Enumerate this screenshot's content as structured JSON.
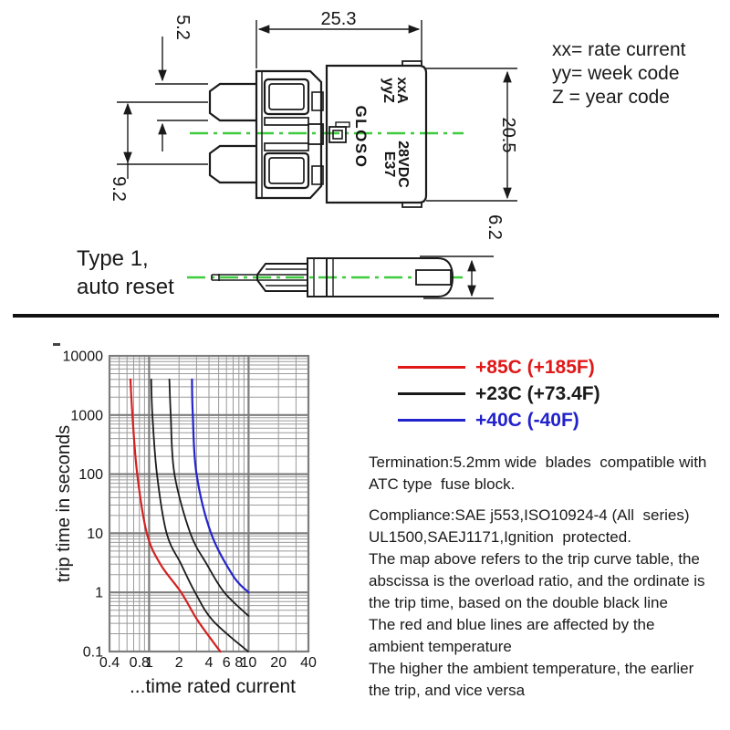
{
  "drawing": {
    "dims": {
      "overall_width": "25.3",
      "blade_width": "5.2",
      "blade_pitch": "9.2",
      "overall_height": "20.5",
      "side_height": "6.2"
    },
    "marking": {
      "current_code": "xxA",
      "week_code": "yyZ",
      "brand": "GLOSO",
      "voltage": "28VDC",
      "series": "E37"
    },
    "type_label": {
      "line1": "Type 1,",
      "line2": "auto reset"
    },
    "code_legend": {
      "line1": "xx= rate current",
      "line2": "yy= week code",
      "line3": "Z = year code"
    }
  },
  "chart": {
    "legend": [
      {
        "label": "+85C (+185F)",
        "color": "#e01818"
      },
      {
        "label": "+23C (+73.4F)",
        "color": "#1a1a1a"
      },
      {
        "label": "+40C (-40F)",
        "color": "#2222cc"
      }
    ],
    "xlabel": "...time rated current",
    "ylabel": "trip time in seconds"
  },
  "chart_data": {
    "type": "line",
    "x_scale": "log",
    "y_scale": "log",
    "xlim": [
      0.4,
      40
    ],
    "ylim": [
      0.1,
      10000
    ],
    "xlabel": "...time rated current",
    "ylabel": "trip time in seconds",
    "x_ticks": [
      0.4,
      0.8,
      1,
      2,
      4,
      6,
      8,
      10,
      20,
      40
    ],
    "x_tick_labels": [
      "0.4",
      "0.8",
      "1",
      "2",
      "4",
      "6",
      "8",
      "10",
      "20",
      "40"
    ],
    "y_ticks": [
      0.1,
      1,
      10,
      100,
      1000,
      10000
    ],
    "y_tick_labels": [
      "0.1",
      "1",
      "10",
      "100",
      "1000",
      "10000"
    ],
    "grid": true,
    "legend_position": "top-right",
    "series": [
      {
        "name": "+85C (+185F)",
        "color": "#d42020",
        "width": 2.2,
        "points": [
          [
            0.65,
            4000
          ],
          [
            0.68,
            1000
          ],
          [
            0.76,
            100
          ],
          [
            0.95,
            10
          ],
          [
            1.3,
            3
          ],
          [
            2.1,
            1
          ],
          [
            3.1,
            0.33
          ],
          [
            5.2,
            0.1
          ]
        ]
      },
      {
        "name": "+23C (+73.4F) lower",
        "color": "#1c1c1c",
        "width": 1.8,
        "points": [
          [
            1.05,
            4000
          ],
          [
            1.08,
            1000
          ],
          [
            1.2,
            100
          ],
          [
            1.5,
            10
          ],
          [
            2.1,
            3
          ],
          [
            2.9,
            1
          ],
          [
            4.4,
            0.33
          ],
          [
            9.9,
            0.1
          ]
        ]
      },
      {
        "name": "+23C (+73.4F) upper",
        "color": "#1c1c1c",
        "width": 1.8,
        "points": [
          [
            1.6,
            4000
          ],
          [
            1.65,
            1000
          ],
          [
            1.8,
            100
          ],
          [
            2.6,
            10
          ],
          [
            3.8,
            3
          ],
          [
            5.7,
            1
          ],
          [
            10,
            0.4
          ]
        ]
      },
      {
        "name": "+40C (-40F)",
        "color": "#2525cc",
        "width": 2.2,
        "points": [
          [
            2.7,
            4000
          ],
          [
            2.75,
            1000
          ],
          [
            3.0,
            100
          ],
          [
            4.2,
            10
          ],
          [
            7.0,
            1.9
          ],
          [
            10,
            1
          ]
        ]
      }
    ]
  },
  "notes": {
    "lines": [
      "Termination:5.2mm wide  blades  compatible with",
      "ATC type  fuse block.",
      "Compliance:SAE j553,ISO10924-4 (All  series)",
      "UL1500,SAEJ1171,Ignition  protected.",
      "The map above refers to the trip curve table, the",
      "abscissa is the overload ratio, and the ordinate is",
      "the trip time, based on the double black line",
      "The red and blue lines are affected by the",
      "ambient temperature",
      "The higher the ambient temperature, the earlier",
      "the trip, and vice versa"
    ]
  },
  "colors": {
    "centerline_green": "#3ecc3e",
    "line_black": "#1a1a1a",
    "grid_minor": "#9a9a9a",
    "grid_major": "#7d7d7d"
  }
}
